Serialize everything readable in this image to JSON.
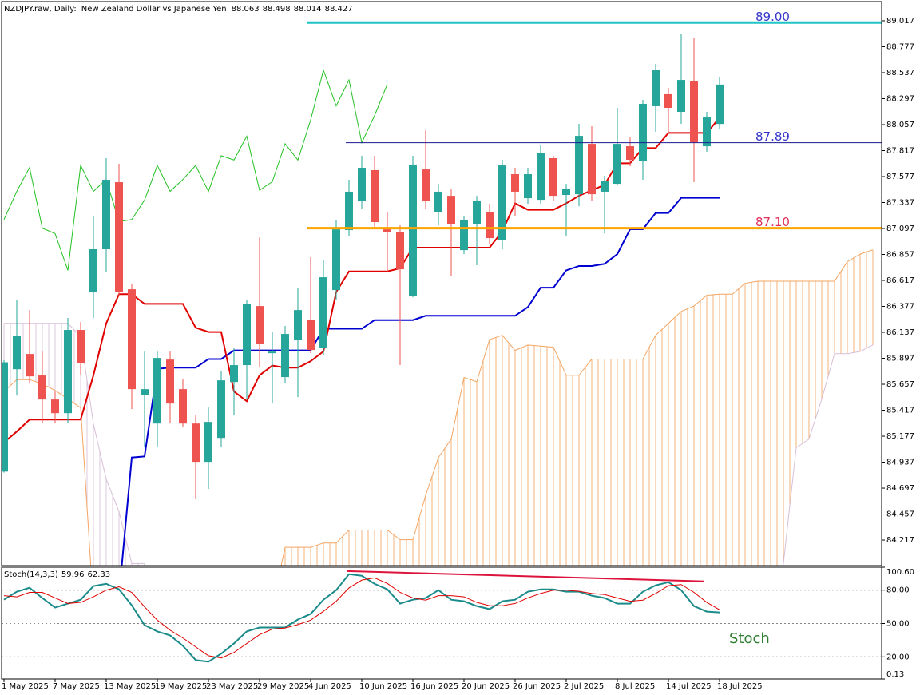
{
  "chart_data": [
    {
      "type": "candlestick",
      "symbol": "NZDJPY.raw, Daily:",
      "title": "New Zealand Dollar vs Japanese Yen",
      "categories": [
        "1 May 2025",
        null,
        null,
        null,
        "7 May 2025",
        null,
        null,
        null,
        "13 May 2025",
        null,
        null,
        null,
        "19 May 2025",
        null,
        null,
        null,
        "23 May 2025",
        null,
        null,
        null,
        "29 May 2025",
        null,
        null,
        null,
        "4 Jun 2025",
        null,
        null,
        null,
        "10 Jun 2025",
        null,
        null,
        null,
        "16 Jun 2025",
        null,
        null,
        null,
        "20 Jun 2025",
        null,
        null,
        null,
        "26 Jun 2025",
        null,
        null,
        null,
        "2 Jul 2025",
        null,
        null,
        null,
        "8 Jul 2025",
        null,
        null,
        null,
        "14 Jul 2025",
        null,
        null,
        null,
        "18 Jul 2025"
      ],
      "candles": {
        "up_color": "#26a69a",
        "down_color": "#ef5350",
        "open": [
          84.85,
          85.796,
          85.937,
          85.738,
          85.516,
          85.39,
          86.159,
          86.506,
          86.905,
          87.525,
          86.535,
          85.561,
          85.294,
          85.885,
          85.612,
          85.294,
          84.94,
          85.161,
          85.678,
          85.834,
          86.38,
          85.944,
          85.723,
          86.063,
          86.255,
          85.996,
          86.528,
          87.082,
          87.348,
          87.636,
          87.089,
          87.067,
          86.476,
          87.643,
          87.252,
          87.399,
          86.897,
          87.141,
          87.252,
          86.993,
          87.599,
          87.377,
          87.362,
          87.747,
          87.407,
          87.414,
          87.879,
          87.437,
          87.51,
          87.857,
          87.717,
          88.227,
          88.338,
          88.175,
          88.456,
          87.857,
          88.063
        ],
        "high": [
          85.88,
          86.44,
          86.343,
          85.959,
          85.59,
          86.27,
          86.233,
          87.215,
          87.747,
          87.695,
          86.587,
          85.959,
          85.959,
          85.959,
          85.701,
          85.368,
          85.442,
          85.775,
          85.996,
          86.44,
          87.015,
          86.144,
          86.196,
          86.55,
          86.831,
          86.809,
          87.178,
          87.547,
          87.769,
          87.769,
          87.252,
          87.126,
          87.769,
          88.005,
          87.51,
          87.458,
          87.215,
          87.399,
          87.325,
          87.732,
          87.658,
          87.658,
          87.865,
          87.769,
          87.51,
          88.064,
          88.042,
          87.584,
          88.212,
          87.938,
          88.286,
          88.618,
          88.397,
          88.899,
          88.855,
          88.175,
          88.498
        ],
        "low": [
          84.84,
          85.553,
          85.664,
          85.294,
          85.294,
          85.294,
          85.738,
          86.27,
          86.698,
          86.476,
          85.427,
          85.073,
          85.073,
          85.294,
          85.258,
          84.593,
          84.689,
          85.073,
          85.368,
          85.516,
          85.811,
          85.479,
          85.664,
          85.538,
          85.944,
          85.922,
          86.44,
          87.03,
          87.274,
          87.104,
          86.698,
          85.834,
          86.461,
          87.274,
          87.126,
          86.661,
          86.86,
          86.757,
          86.956,
          86.905,
          87.215,
          87.325,
          87.325,
          87.348,
          87.03,
          87.303,
          87.348,
          87.052,
          87.495,
          87.673,
          87.547,
          87.99,
          87.968,
          88.064,
          87.525,
          87.806,
          88.014
        ],
        "close": [
          85.86,
          86.107,
          85.73,
          85.516,
          85.39,
          86.159,
          85.856,
          86.905,
          87.547,
          86.513,
          85.612,
          85.612,
          85.9,
          85.479,
          85.294,
          84.94,
          85.309,
          85.693,
          85.834,
          86.402,
          86.033,
          85.959,
          86.122,
          86.343,
          85.974,
          86.646,
          87.089,
          87.437,
          87.658,
          87.156,
          87.067,
          86.72,
          87.688,
          87.348,
          87.437,
          87.141,
          87.178,
          87.348,
          87.008,
          87.68,
          87.437,
          87.599,
          87.791,
          87.399,
          87.466,
          87.953,
          87.414,
          87.54,
          87.879,
          87.732,
          88.249,
          88.566,
          88.212,
          88.47,
          87.894,
          88.123,
          88.427
        ]
      },
      "tenkan": {
        "color": "#e00000",
        "values": [
          85.12,
          85.22,
          85.33,
          85.33,
          85.33,
          85.33,
          85.33,
          85.74,
          86.22,
          86.49,
          86.49,
          86.4,
          86.4,
          86.4,
          86.4,
          86.18,
          86.14,
          86.14,
          85.59,
          85.5,
          85.74,
          85.83,
          85.81,
          85.81,
          85.87,
          85.96,
          86.51,
          86.7,
          86.7,
          86.7,
          86.7,
          86.73,
          86.92,
          86.92,
          86.92,
          86.92,
          86.92,
          86.92,
          86.92,
          87.07,
          87.33,
          87.27,
          87.27,
          87.27,
          87.33,
          87.4,
          87.45,
          87.5,
          87.7,
          87.7,
          87.84,
          87.84,
          87.98,
          87.98,
          87.98,
          87.98,
          88.12
        ]
      },
      "kijun": {
        "color": "#0000d0",
        "values": [
          null,
          null,
          null,
          null,
          null,
          null,
          null,
          null,
          null,
          83.7,
          84.98,
          84.99,
          85.8,
          85.81,
          85.81,
          85.81,
          85.89,
          85.89,
          85.97,
          85.97,
          85.97,
          85.97,
          85.97,
          85.97,
          85.97,
          86.17,
          86.17,
          86.17,
          86.17,
          86.25,
          86.25,
          86.25,
          86.25,
          86.29,
          86.29,
          86.29,
          86.29,
          86.29,
          86.29,
          86.29,
          86.29,
          86.37,
          86.55,
          86.55,
          86.71,
          86.75,
          86.75,
          86.77,
          86.86,
          87.09,
          87.09,
          87.24,
          87.24,
          87.38,
          87.38,
          87.38,
          87.38
        ]
      },
      "chikou": {
        "color": "#22c022",
        "values": [
          87.18,
          87.44,
          87.66,
          87.1,
          87.05,
          86.71,
          87.68,
          87.44,
          87.55,
          87.16,
          87.18,
          87.36,
          87.68,
          87.44,
          87.55,
          87.68,
          87.44,
          87.77,
          87.73,
          87.95,
          87.45,
          87.53,
          87.88,
          87.73,
          88.1,
          88.56,
          88.23,
          88.47,
          87.89,
          88.14,
          88.43,
          null,
          null,
          null,
          null,
          null,
          null,
          null,
          null,
          null,
          null,
          null,
          null,
          null,
          null,
          null,
          null,
          null,
          null,
          null,
          null,
          null,
          null,
          null,
          null,
          null,
          null
        ]
      },
      "cloud": {
        "span_a": {
          "color": "#f4a460",
          "values": [
            85.59,
            85.7,
            85.7,
            85.66,
            85.6,
            85.52,
            85.44,
            83.6,
            83.6,
            83.6,
            83.6,
            83.6,
            83.6,
            83.6,
            83.6,
            83.6,
            83.6,
            83.6,
            83.6,
            83.6,
            83.6,
            83.6,
            84.15,
            84.15,
            84.15,
            84.19,
            84.19,
            84.31,
            84.31,
            84.31,
            84.31,
            84.22,
            84.22,
            84.63,
            84.98,
            85.15,
            85.72,
            85.68,
            86.07,
            86.11,
            85.97,
            86.02,
            86.01,
            86.0,
            85.74,
            85.74,
            85.89,
            85.89,
            85.89,
            85.89,
            85.89,
            86.11,
            86.22,
            86.33,
            86.38,
            86.48,
            86.49,
            86.49,
            86.59,
            86.61,
            86.61,
            86.61,
            86.61,
            86.61,
            86.61,
            86.61,
            86.79,
            86.86,
            86.9
          ]
        },
        "span_b": {
          "color": "#d8bfd8",
          "values": [
            86.22,
            86.22,
            86.22,
            86.22,
            86.22,
            86.22,
            86.1,
            85.29,
            84.78,
            84.48,
            84.0,
            84.0,
            83.6,
            83.6,
            83.6,
            83.6,
            83.6,
            83.6,
            83.6,
            83.6,
            83.6,
            83.6,
            83.6,
            83.6,
            83.6,
            83.6,
            83.6,
            83.6,
            83.6,
            83.6,
            83.6,
            83.6,
            83.6,
            83.6,
            83.6,
            83.6,
            83.6,
            83.6,
            83.6,
            83.6,
            83.6,
            83.6,
            83.6,
            83.6,
            83.6,
            83.6,
            83.6,
            83.6,
            83.6,
            83.6,
            83.6,
            83.6,
            83.6,
            83.6,
            83.6,
            83.6,
            83.6,
            83.6,
            83.6,
            83.6,
            83.6,
            84.0,
            85.07,
            85.15,
            85.52,
            85.94,
            85.94,
            85.96,
            86.02
          ]
        }
      },
      "levels": [
        {
          "price": 89,
          "label": "89.00",
          "color": "#20c4c4",
          "label_color": "#3535c8"
        },
        {
          "price": 87.89,
          "color": "#1a1a90",
          "label_color": "#3535c8"
        },
        {
          "price": 87.1,
          "label": "87.10",
          "color": "#ffa500",
          "label_color": "#e0305a"
        }
      ],
      "ylim": [
        83.981,
        89.194
      ],
      "yticks": [
        89.017,
        88.777,
        88.537,
        88.297,
        88.057,
        87.817,
        87.577,
        87.337,
        87.097,
        86.857,
        86.617,
        86.377,
        86.137,
        85.897,
        85.657,
        85.417,
        85.177,
        84.937,
        84.697,
        84.457,
        84.217
      ]
    },
    {
      "type": "line",
      "title": "Stoch(14,3,3)",
      "series": [
        {
          "color": "#1a8a8a",
          "values": [
            71.4,
            78.6,
            82.1,
            72.9,
            64.3,
            67.9,
            71.4,
            83.6,
            85.7,
            80.7,
            66.4,
            48.6,
            42.9,
            39.3,
            30.0,
            17.1,
            15.7,
            22.9,
            32.1,
            42.9,
            46.4,
            46.4,
            46.4,
            53.6,
            58.6,
            71.4,
            80.0,
            94.3,
            92.9,
            85.7,
            80.7,
            67.9,
            71.4,
            72.9,
            80.0,
            71.4,
            70.0,
            65.7,
            62.9,
            70.0,
            71.4,
            78.6,
            80.7,
            80.7,
            78.6,
            78.6,
            75.0,
            72.9,
            67.9,
            67.9,
            78.6,
            84.3,
            87.1,
            80.0,
            65.7,
            60.7,
            59.96
          ]
        },
        {
          "color": "#e00000",
          "values": [
            75,
            74,
            78,
            78,
            73,
            68,
            69,
            74,
            80,
            83,
            78,
            65,
            53,
            44,
            37,
            29,
            21,
            19,
            24,
            32,
            40,
            45,
            46,
            49,
            53,
            61,
            70,
            82,
            89,
            91,
            86,
            78,
            73,
            71,
            75,
            75,
            74,
            69,
            66,
            66,
            68,
            73,
            77,
            80,
            80,
            79,
            77,
            76,
            73,
            70,
            71,
            77,
            84,
            85,
            78,
            69,
            62.33
          ]
        }
      ],
      "trendline": {
        "color": "#dc143c",
        "values": [
          97.1,
          87.9
        ]
      },
      "levels": [
        80,
        50,
        20
      ],
      "annotation": "Stoch",
      "annotation_color": "#2e7d32",
      "ylim": [
        0.13,
        100.6
      ],
      "yticks": [
        {
          "value": 100.6,
          "label": "100.60"
        },
        {
          "value": 80,
          "label": "80.00"
        },
        {
          "value": 50,
          "label": "50.00"
        },
        {
          "value": 20,
          "label": "20.00"
        },
        0.13
      ]
    }
  ]
}
